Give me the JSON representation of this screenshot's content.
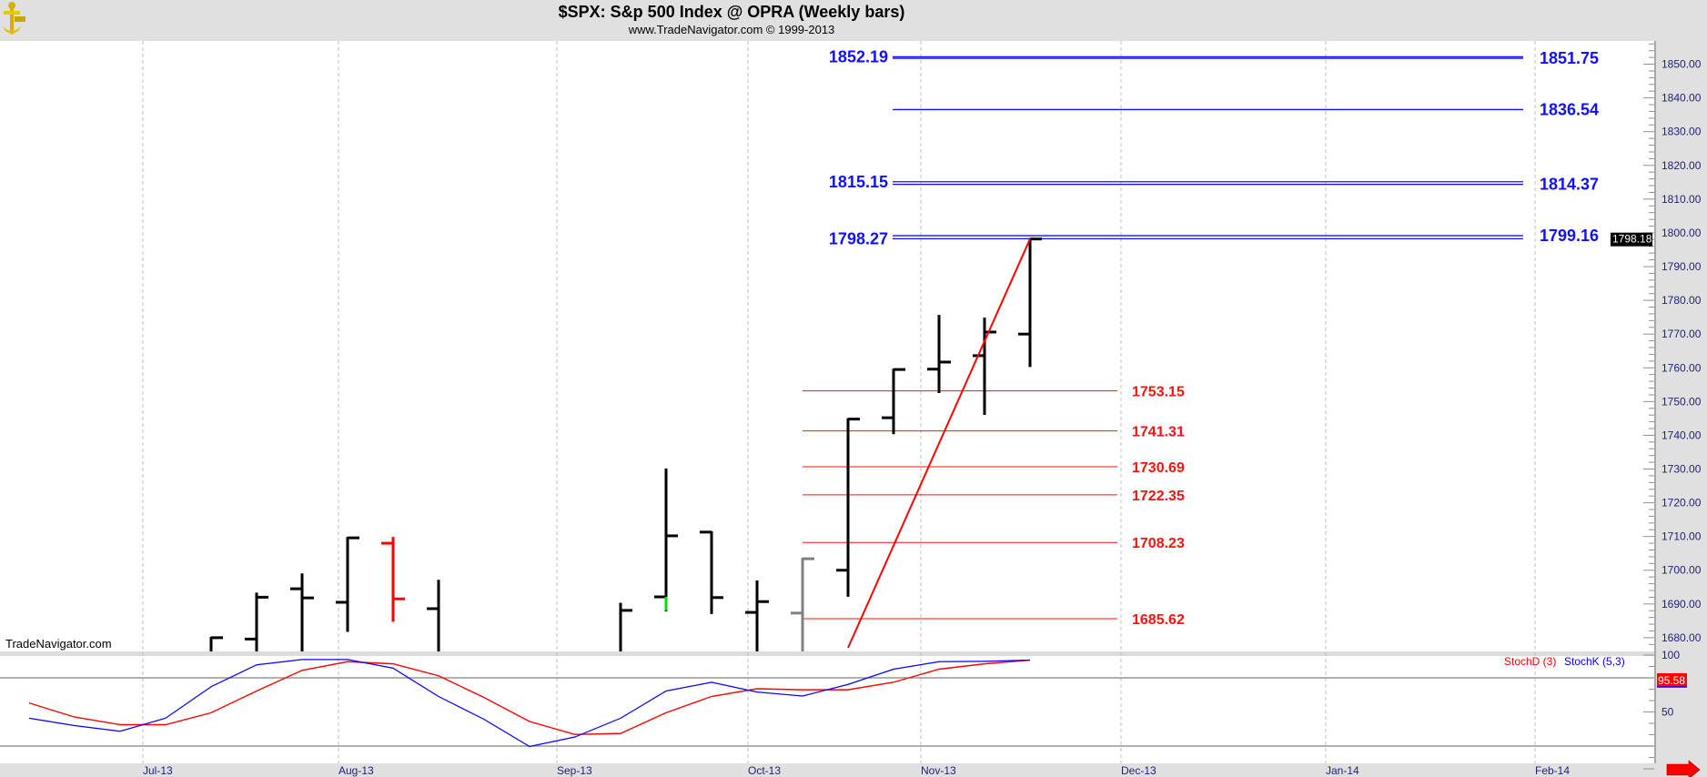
{
  "header": {
    "title": "$SPX:  S&p 500 Index @ OPRA  (Weekly bars)",
    "subtitle": "www.TradeNavigator.com © 1999-2013"
  },
  "watermark": "TradeNavigator.com",
  "colors": {
    "up_bar": "#000000",
    "down_bar": "#ff0000",
    "neutral_bar": "#808080",
    "blue_level": "#1010ff",
    "red_level": "#ff1010",
    "stoch_d": "#ff0000",
    "stoch_k": "#0000ff"
  },
  "chart_data": {
    "type": "ohlc",
    "title": "$SPX:  S&p 500 Index @ OPRA  (Weekly bars)",
    "price_axis": {
      "min": 1680,
      "max": 1850,
      "step": 10,
      "labels": [
        "1680.00",
        "1690.00",
        "1700.00",
        "1710.00",
        "1720.00",
        "1730.00",
        "1740.00",
        "1750.00",
        "1760.00",
        "1770.00",
        "1780.00",
        "1790.00",
        "1800.00",
        "1810.00",
        "1820.00",
        "1830.00",
        "1840.00",
        "1850.00"
      ]
    },
    "last_price": "1798.18",
    "x_labels": [
      {
        "label": "Jul-13",
        "week": 2.5
      },
      {
        "label": "Aug-13",
        "week": 6.8
      },
      {
        "label": "Sep-13",
        "week": 11.6
      },
      {
        "label": "Oct-13",
        "week": 15.8
      },
      {
        "label": "Nov-13",
        "week": 19.6
      },
      {
        "label": "Dec-13",
        "week": 24.0
      },
      {
        "label": "Jan-14",
        "week": 28.5
      },
      {
        "label": "Feb-14",
        "week": 33.1
      }
    ],
    "bars": [
      {
        "week": 4,
        "o": 1668.0,
        "h": 1680.0,
        "l": 1660.0,
        "c": 1680.0,
        "color": "up"
      },
      {
        "week": 5,
        "o": 1679.6,
        "h": 1693.1,
        "l": 1660.0,
        "c": 1692.0,
        "color": "up"
      },
      {
        "week": 6,
        "o": 1694.5,
        "h": 1698.8,
        "l": 1660.0,
        "c": 1691.8,
        "color": "up"
      },
      {
        "week": 7,
        "o": 1690.5,
        "h": 1709.6,
        "l": 1682.0,
        "c": 1709.6,
        "color": "up"
      },
      {
        "week": 8,
        "o": 1708.0,
        "h": 1709.6,
        "l": 1685.0,
        "c": 1691.5,
        "color": "down"
      },
      {
        "week": 9,
        "o": 1688.6,
        "h": 1696.9,
        "l": 1660.0,
        "c": 1672.0,
        "color": "up"
      },
      {
        "week": 13,
        "o": 1675.0,
        "h": 1690.1,
        "l": 1660.0,
        "c": 1688.1,
        "color": "up"
      },
      {
        "week": 14,
        "o": 1692.1,
        "h": 1729.9,
        "l": 1688.1,
        "c": 1710.2,
        "color": "up"
      },
      {
        "week": 15,
        "o": 1711.3,
        "h": 1711.3,
        "l": 1687.3,
        "c": 1691.9,
        "color": "up"
      },
      {
        "week": 16,
        "o": 1687.5,
        "h": 1696.7,
        "l": 1660.0,
        "c": 1690.7,
        "color": "up"
      },
      {
        "week": 17,
        "o": 1687.3,
        "h": 1703.4,
        "l": 1660.0,
        "c": 1703.4,
        "color": "neutral"
      },
      {
        "week": 18,
        "o": 1700.0,
        "h": 1744.8,
        "l": 1692.4,
        "c": 1744.8,
        "color": "up"
      },
      {
        "week": 19,
        "o": 1745.2,
        "h": 1759.5,
        "l": 1740.6,
        "c": 1759.5,
        "color": "up"
      },
      {
        "week": 20,
        "o": 1759.6,
        "h": 1775.4,
        "l": 1752.8,
        "c": 1761.7,
        "color": "up"
      },
      {
        "week": 21,
        "o": 1763.6,
        "h": 1774.6,
        "l": 1746.3,
        "c": 1770.6,
        "color": "up"
      },
      {
        "week": 22,
        "o": 1770.0,
        "h": 1798.18,
        "l": 1760.5,
        "c": 1798.18,
        "color": "up"
      }
    ],
    "trendline": {
      "from": {
        "week": 18,
        "price": 1677.0
      },
      "to": {
        "week": 22,
        "price": 1798.18
      }
    },
    "red_levels": [
      "1753.15",
      "1741.31",
      "1730.69",
      "1722.35",
      "1708.23",
      "1685.62"
    ],
    "blue_levels": [
      {
        "value": 1852.19,
        "left_label": "1852.19",
        "right_label": ""
      },
      {
        "value": 1851.75,
        "left_label": "",
        "right_label": "1851.75"
      },
      {
        "value": 1836.54,
        "left_label": "",
        "right_label": "1836.54"
      },
      {
        "value": 1815.15,
        "left_label": "1815.15",
        "right_label": ""
      },
      {
        "value": 1814.37,
        "left_label": "",
        "right_label": "1814.37"
      },
      {
        "value": 1798.27,
        "left_label": "1798.27",
        "right_label": ""
      },
      {
        "value": 1799.16,
        "left_label": "",
        "right_label": "1799.16"
      }
    ],
    "stochastic": {
      "legend_d": "StochD (3)",
      "legend_k": "StochK (5,3)",
      "last_value": "95.58",
      "axis_labels": [
        {
          "label": "100",
          "value": 100
        },
        {
          "label": "50",
          "value": 50
        }
      ],
      "levels": [
        80,
        20
      ],
      "d": [
        57.9,
        45.5,
        38.8,
        38.8,
        49.3,
        68.4,
        86.6,
        94.2,
        92.3,
        81.8,
        62.7,
        41.6,
        30.2,
        31.1,
        49.3,
        63.6,
        70.4,
        69.5,
        69.5,
        76.1,
        87.6,
        92.3,
        95.58
      ],
      "k": [
        44.5,
        38.0,
        33.0,
        44.5,
        72.2,
        91.4,
        96.1,
        96.1,
        88.5,
        63.6,
        43.5,
        19.6,
        28.0,
        44.5,
        68.4,
        76.1,
        67.5,
        64.0,
        74.2,
        87.6,
        94.2,
        94.5,
        95.58
      ]
    }
  }
}
